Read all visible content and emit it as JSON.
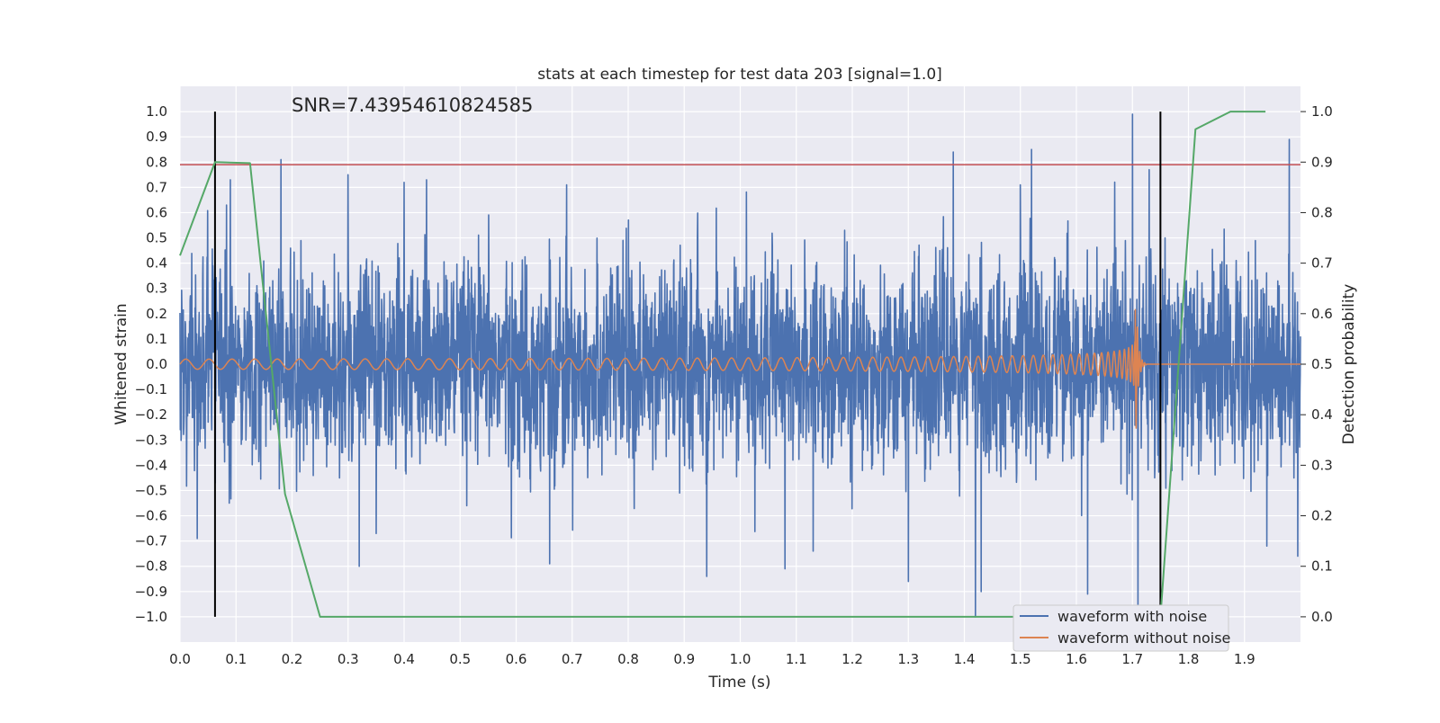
{
  "chart_data": {
    "type": "line",
    "title": "stats at each timestep for test data 203 [signal=1.0]",
    "annotation": "SNR=7.43954610824585",
    "xlabel": "Time (s)",
    "ylabel": "Whitened strain",
    "y2label": "Detection probability",
    "xlim": [
      0.0,
      2.0
    ],
    "ylim": [
      -1.1,
      1.1
    ],
    "y2lim": [
      -0.05,
      1.05
    ],
    "x_ticks": [
      "0.0",
      "0.1",
      "0.2",
      "0.3",
      "0.4",
      "0.5",
      "0.6",
      "0.7",
      "0.8",
      "0.9",
      "1.0",
      "1.1",
      "1.2",
      "1.3",
      "1.4",
      "1.5",
      "1.6",
      "1.7",
      "1.8",
      "1.9"
    ],
    "y_ticks": [
      "−1.0",
      "−0.9",
      "−0.8",
      "−0.7",
      "−0.6",
      "−0.5",
      "−0.4",
      "−0.3",
      "−0.2",
      "−0.1",
      "0.0",
      "0.1",
      "0.2",
      "0.3",
      "0.4",
      "0.5",
      "0.6",
      "0.7",
      "0.8",
      "0.9",
      "1.0"
    ],
    "y2_ticks": [
      "0.0",
      "0.1",
      "0.2",
      "0.3",
      "0.4",
      "0.5",
      "0.6",
      "0.7",
      "0.8",
      "0.9",
      "1.0"
    ],
    "grid": true,
    "legend_position": "bottom-right",
    "threshold_y": 0.79,
    "vertical_markers_x": [
      0.0625,
      1.75
    ],
    "series": [
      {
        "name": "waveform with noise",
        "color": "#4c72b0",
        "kind": "noise",
        "x_range": [
          0.0,
          2.0
        ],
        "amplitude_std": 0.27,
        "peaks": [
          {
            "x": 0.031,
            "y": -0.69
          },
          {
            "x": 0.063,
            "y": -0.47
          },
          {
            "x": 0.083,
            "y": 0.63
          },
          {
            "x": 0.088,
            "y": -0.55
          },
          {
            "x": 0.09,
            "y": 0.73
          },
          {
            "x": 0.18,
            "y": 0.81
          },
          {
            "x": 0.3,
            "y": 0.75
          },
          {
            "x": 0.32,
            "y": -0.8
          },
          {
            "x": 0.35,
            "y": -0.67
          },
          {
            "x": 0.4,
            "y": 0.72
          },
          {
            "x": 0.44,
            "y": 0.73
          },
          {
            "x": 0.66,
            "y": -0.79
          },
          {
            "x": 0.69,
            "y": 0.71
          },
          {
            "x": 0.94,
            "y": -0.84
          },
          {
            "x": 1.08,
            "y": -0.81
          },
          {
            "x": 1.13,
            "y": -0.74
          },
          {
            "x": 1.3,
            "y": -0.86
          },
          {
            "x": 1.38,
            "y": 0.84
          },
          {
            "x": 1.42,
            "y": -1.0
          },
          {
            "x": 1.43,
            "y": -0.9
          },
          {
            "x": 1.5,
            "y": 0.71
          },
          {
            "x": 1.52,
            "y": 0.85
          },
          {
            "x": 1.62,
            "y": -0.91
          },
          {
            "x": 1.7,
            "y": 0.99
          },
          {
            "x": 1.71,
            "y": -0.99
          },
          {
            "x": 1.73,
            "y": 0.77
          },
          {
            "x": 1.94,
            "y": -0.72
          },
          {
            "x": 1.98,
            "y": 0.89
          },
          {
            "x": 1.995,
            "y": -0.76
          }
        ]
      },
      {
        "name": "waveform without noise",
        "color": "#dd8452",
        "kind": "chirp",
        "x_range": [
          0.0,
          1.725
        ],
        "merger_x": 1.705,
        "amplitude_start": 0.02,
        "amplitude_peak": 0.38,
        "frequency_start_hz": 24,
        "frequency_peak_hz": 260,
        "after_merger_y": 0.0,
        "after_merger_x_end": 2.0
      },
      {
        "name": "detection probability",
        "color": "#55a868",
        "axis": "right",
        "kind": "polyline",
        "x": [
          0.0,
          0.0625,
          0.125,
          0.1875,
          0.25,
          0.3125,
          1.0625,
          1.6875,
          1.75,
          1.8125,
          1.875,
          1.9375
        ],
        "y": [
          0.715,
          0.9,
          0.898,
          0.243,
          0.0,
          0.0,
          0.0,
          0.0,
          0.0,
          0.965,
          1.0,
          1.0
        ]
      }
    ]
  },
  "colors": {
    "background": "#eaeaf2",
    "grid": "#ffffff",
    "threshold": "#c44e52",
    "marker": "#000000"
  }
}
